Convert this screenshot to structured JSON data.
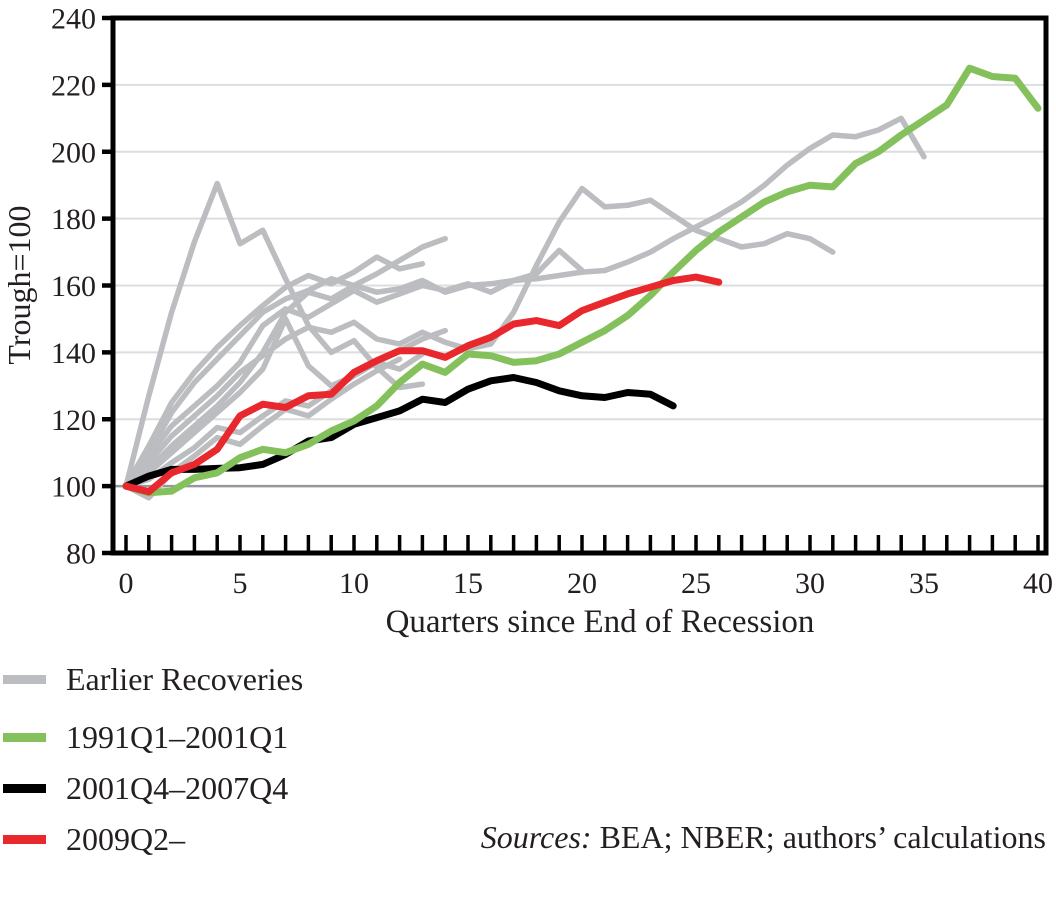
{
  "chart_data": {
    "type": "line",
    "title": "",
    "xlabel": "Quarters since End of Recession",
    "ylabel": "Trough=100",
    "xlim": [
      0,
      40
    ],
    "ylim": [
      80,
      240
    ],
    "x_major_ticks": [
      0,
      5,
      10,
      15,
      20,
      25,
      30,
      35,
      40
    ],
    "x_minor_tick_step": 1,
    "y_ticks": [
      80,
      100,
      120,
      140,
      160,
      180,
      200,
      220,
      240
    ],
    "reference_line_y": 100,
    "grid": "horizontal-light",
    "legend_position": "bottom-left",
    "colors": {
      "gray": "#bcbdc0",
      "green": "#84c15c",
      "black": "#000000",
      "red": "#e8282c",
      "gridline": "#dcddde",
      "reference_line": "#95979a",
      "axis": "#000000",
      "text": "#231f20"
    },
    "series": [
      {
        "name": "Earlier Recoveries",
        "color": "#bcbdc0",
        "line_width": 5.5,
        "x_start": 0,
        "values": [
          100,
          127,
          152,
          173,
          190.5,
          172.5,
          176.5,
          162,
          148,
          140,
          143.5,
          135.5,
          129.5,
          130.5
        ]
      },
      {
        "name": "Earlier Recoveries",
        "color": "#bcbdc0",
        "line_width": 5.5,
        "x_start": 0,
        "values": [
          100,
          110,
          122,
          131,
          138,
          145,
          152,
          156,
          158.5,
          162,
          160,
          163.5,
          167.5,
          171.5,
          174
        ]
      },
      {
        "name": "Earlier Recoveries",
        "color": "#bcbdc0",
        "line_width": 5.5,
        "x_start": 0,
        "values": [
          100,
          112,
          125,
          134,
          141.5,
          148,
          154,
          159.5,
          163,
          160.5,
          164,
          168.5,
          165,
          166.5
        ]
      },
      {
        "name": "Earlier Recoveries",
        "color": "#bcbdc0",
        "line_width": 5.5,
        "x_start": 0,
        "values": [
          100,
          109,
          118,
          124,
          130,
          137,
          148,
          153,
          150.5,
          154.5,
          158.5,
          155,
          157.5,
          160,
          158.5,
          160.5,
          158,
          161.5,
          163.5,
          170.5,
          164.5
        ]
      },
      {
        "name": "Earlier Recoveries",
        "color": "#bcbdc0",
        "line_width": 5.5,
        "x_start": 0,
        "values": [
          100,
          107,
          115,
          121,
          127,
          134,
          139,
          144,
          147.5,
          146,
          149,
          144,
          142.5,
          146,
          143,
          141,
          142.5,
          152,
          166,
          179,
          189,
          183.5,
          184,
          185.5,
          181,
          176.5,
          174,
          171.5,
          172.5,
          175.5,
          174,
          170
        ]
      },
      {
        "name": "Earlier Recoveries",
        "color": "#bcbdc0",
        "line_width": 5.5,
        "x_start": 0,
        "values": [
          100,
          105,
          112,
          118,
          124,
          131,
          140,
          152,
          158,
          156,
          160,
          158,
          159,
          161.5,
          158,
          160,
          160.5,
          161.5,
          162,
          163,
          164,
          164.5,
          167,
          170,
          174,
          177.5,
          181,
          185,
          190,
          196,
          201,
          205,
          204.5,
          206.5,
          210,
          198.5
        ]
      },
      {
        "name": "Earlier Recoveries",
        "color": "#bcbdc0",
        "line_width": 5.5,
        "x_start": 0,
        "values": [
          100,
          104,
          110,
          116,
          122,
          128,
          135,
          150,
          136,
          130,
          133,
          137,
          140.5,
          144,
          146.5
        ]
      },
      {
        "name": "Earlier Recoveries",
        "color": "#bcbdc0",
        "line_width": 5.5,
        "x_start": 0,
        "values": [
          100,
          102,
          107,
          111.5,
          117.5,
          116,
          121,
          125.5,
          124,
          128.5,
          133,
          137,
          135,
          139.5
        ]
      },
      {
        "name": "Earlier Recoveries",
        "color": "#bcbdc0",
        "line_width": 5.5,
        "x_start": 0,
        "values": [
          100,
          96.5,
          104,
          109,
          114.5,
          112.5,
          118,
          123,
          121,
          126,
          130.5,
          134.5,
          138
        ]
      },
      {
        "name": "2001Q4–2007Q4",
        "color": "#000000",
        "line_width": 7,
        "x_start": 0,
        "values": [
          100,
          103,
          105,
          105,
          105.3,
          105.5,
          106.5,
          109.5,
          113.5,
          114.5,
          118.5,
          120.5,
          122.5,
          126,
          125,
          129,
          131.5,
          132.5,
          131,
          128.5,
          127,
          126.5,
          128,
          127.5,
          124
        ]
      },
      {
        "name": "1991Q1–2001Q1",
        "color": "#84c15c",
        "line_width": 7,
        "x_start": 0,
        "values": [
          100,
          98,
          98.5,
          102.5,
          104,
          108.5,
          111,
          110,
          112.5,
          116.5,
          119.5,
          124,
          131,
          136.5,
          134,
          139.5,
          139,
          137,
          137.5,
          139.5,
          143,
          146.5,
          151,
          157,
          164,
          170.5,
          176,
          180.5,
          185,
          188,
          190,
          189.5,
          196.5,
          200,
          205,
          209.5,
          214,
          225,
          222.5,
          222,
          213
        ]
      },
      {
        "name": "2009Q2–",
        "color": "#e8282c",
        "line_width": 7,
        "x_start": 0,
        "values": [
          100,
          98.3,
          104,
          106.5,
          111,
          121,
          124.5,
          123.5,
          127,
          127.5,
          134,
          137.5,
          140.5,
          140.5,
          138.5,
          142,
          144.5,
          148.5,
          149.5,
          148,
          152.5,
          155,
          157.5,
          159.5,
          161.5,
          162.5,
          161
        ]
      }
    ]
  },
  "legend": {
    "items": [
      {
        "label": "Earlier Recoveries",
        "color": "#bcbdc0"
      },
      {
        "label": "1991Q1–2001Q1",
        "color": "#84c15c"
      },
      {
        "label": "2001Q4–2007Q4",
        "color": "#000000"
      },
      {
        "label": "2009Q2–",
        "color": "#e8282c"
      }
    ]
  },
  "sources": {
    "label_italic": "Sources:",
    "rest": " BEA; NBER; authors’ calculations"
  }
}
